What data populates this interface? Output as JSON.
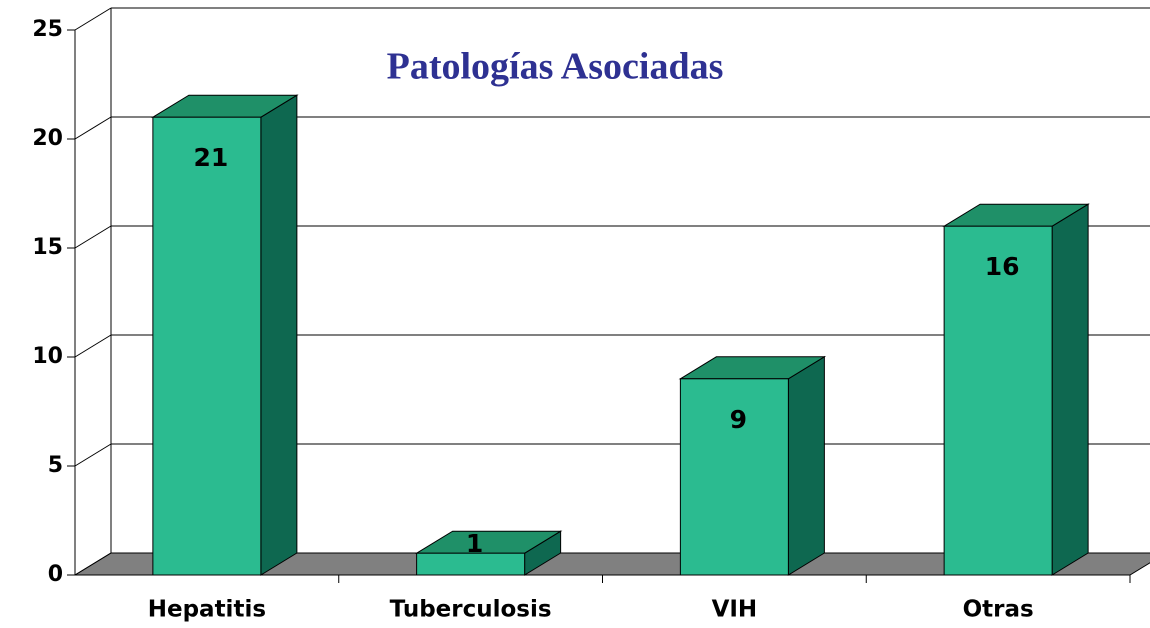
{
  "chart_data": {
    "type": "bar3d",
    "title": "Patologías Asociadas",
    "categories": [
      "Hepatitis",
      "Tuberculosis",
      "VIH",
      "Otras"
    ],
    "values": [
      21,
      1,
      9,
      16
    ],
    "color": "#2bbb90",
    "ylim": [
      0,
      25
    ],
    "yticks": [
      0,
      5,
      10,
      15,
      20,
      25
    ],
    "grid": true
  }
}
